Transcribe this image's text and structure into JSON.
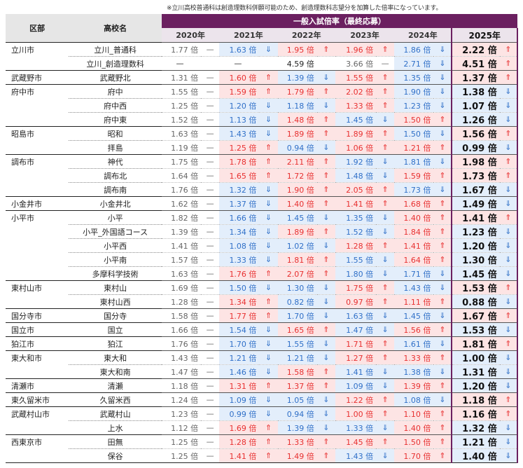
{
  "note": "※立川高校普通科は創造理数科併願可能のため、創造理数科志望分を加算した倍率になっています。",
  "header": {
    "district_label": "区部",
    "school_label": "高校名",
    "banner": "一般入試倍率（最終応募）",
    "years": [
      "2020年",
      "2021年",
      "2022年",
      "2023年",
      "2024年",
      "2025年"
    ]
  },
  "unit": "倍",
  "rows": [
    {
      "district": "立川市",
      "school": "立川_普通科",
      "vals": [
        "1.77",
        "1.63",
        "1.95",
        "1.96",
        "1.86",
        "2.22"
      ],
      "trend": [
        "flat",
        "down",
        "up",
        "up",
        "down",
        "up"
      ]
    },
    {
      "district": "",
      "school": "立川_創造理数科",
      "vals": [
        "—",
        "—",
        "4.59",
        "3.66",
        "2.71",
        "4.51"
      ],
      "trend": [
        "blank",
        "blank",
        "blank",
        "flat",
        "down",
        "up"
      ]
    },
    {
      "district": "武蔵野市",
      "school": "武蔵野北",
      "vals": [
        "1.31",
        "1.60",
        "1.39",
        "1.55",
        "1.35",
        "1.37"
      ],
      "trend": [
        "flat",
        "up",
        "down",
        "up",
        "down",
        "up"
      ]
    },
    {
      "district": "府中市",
      "school": "府中",
      "vals": [
        "1.55",
        "1.59",
        "1.79",
        "2.02",
        "1.90",
        "1.38"
      ],
      "trend": [
        "flat",
        "up",
        "up",
        "up",
        "down",
        "down"
      ]
    },
    {
      "district": "",
      "school": "府中西",
      "vals": [
        "1.25",
        "1.20",
        "1.18",
        "1.33",
        "1.23",
        "1.07"
      ],
      "trend": [
        "flat",
        "down",
        "down",
        "up",
        "down",
        "down"
      ]
    },
    {
      "district": "",
      "school": "府中東",
      "vals": [
        "1.52",
        "1.13",
        "1.48",
        "1.45",
        "1.50",
        "1.26"
      ],
      "trend": [
        "flat",
        "down",
        "up",
        "down",
        "up",
        "down"
      ]
    },
    {
      "district": "昭島市",
      "school": "昭和",
      "vals": [
        "1.63",
        "1.43",
        "1.89",
        "1.89",
        "1.50",
        "1.56"
      ],
      "trend": [
        "flat",
        "down",
        "up",
        "up",
        "down",
        "up"
      ]
    },
    {
      "district": "",
      "school": "拝島",
      "vals": [
        "1.19",
        "1.25",
        "0.94",
        "1.06",
        "1.21",
        "0.99"
      ],
      "trend": [
        "flat",
        "up",
        "down",
        "up",
        "up",
        "down"
      ]
    },
    {
      "district": "調布市",
      "school": "神代",
      "vals": [
        "1.75",
        "1.78",
        "2.11",
        "1.92",
        "1.81",
        "1.98"
      ],
      "trend": [
        "flat",
        "up",
        "up",
        "down",
        "down",
        "up"
      ]
    },
    {
      "district": "",
      "school": "調布北",
      "vals": [
        "1.64",
        "1.65",
        "1.72",
        "1.48",
        "1.59",
        "1.73"
      ],
      "trend": [
        "flat",
        "up",
        "up",
        "down",
        "up",
        "up"
      ]
    },
    {
      "district": "",
      "school": "調布南",
      "vals": [
        "1.76",
        "1.32",
        "1.90",
        "2.05",
        "1.73",
        "1.67"
      ],
      "trend": [
        "flat",
        "down",
        "up",
        "up",
        "down",
        "down"
      ]
    },
    {
      "district": "小金井市",
      "school": "小金井北",
      "vals": [
        "1.62",
        "1.37",
        "1.40",
        "1.41",
        "1.68",
        "1.49"
      ],
      "trend": [
        "flat",
        "down",
        "up",
        "up",
        "up",
        "down"
      ]
    },
    {
      "district": "小平市",
      "school": "小平",
      "vals": [
        "1.82",
        "1.66",
        "1.45",
        "1.35",
        "1.40",
        "1.41"
      ],
      "trend": [
        "flat",
        "down",
        "down",
        "down",
        "up",
        "up"
      ]
    },
    {
      "district": "",
      "school": "小平_外国語コース",
      "vals": [
        "1.39",
        "1.34",
        "1.89",
        "1.52",
        "1.84",
        "1.23"
      ],
      "trend": [
        "flat",
        "down",
        "up",
        "down",
        "up",
        "down"
      ]
    },
    {
      "district": "",
      "school": "小平西",
      "vals": [
        "1.41",
        "1.08",
        "1.02",
        "1.28",
        "1.41",
        "1.20"
      ],
      "trend": [
        "flat",
        "down",
        "down",
        "up",
        "up",
        "down"
      ]
    },
    {
      "district": "",
      "school": "小平南",
      "vals": [
        "1.57",
        "1.33",
        "1.81",
        "1.55",
        "1.64",
        "1.30"
      ],
      "trend": [
        "flat",
        "down",
        "up",
        "down",
        "up",
        "down"
      ]
    },
    {
      "district": "",
      "school": "多摩科学技術",
      "vals": [
        "1.63",
        "1.76",
        "2.07",
        "1.80",
        "1.71",
        "1.45"
      ],
      "trend": [
        "flat",
        "up",
        "up",
        "down",
        "down",
        "down"
      ]
    },
    {
      "district": "東村山市",
      "school": "東村山",
      "vals": [
        "1.69",
        "1.50",
        "1.30",
        "1.75",
        "1.43",
        "1.53"
      ],
      "trend": [
        "flat",
        "down",
        "down",
        "up",
        "down",
        "up"
      ]
    },
    {
      "district": "",
      "school": "東村山西",
      "vals": [
        "1.28",
        "1.34",
        "0.82",
        "0.97",
        "1.11",
        "0.88"
      ],
      "trend": [
        "flat",
        "up",
        "down",
        "up",
        "up",
        "down"
      ]
    },
    {
      "district": "国分寺市",
      "school": "国分寺",
      "vals": [
        "1.58",
        "1.77",
        "1.70",
        "1.63",
        "1.45",
        "1.67"
      ],
      "trend": [
        "flat",
        "up",
        "down",
        "down",
        "down",
        "up"
      ]
    },
    {
      "district": "国立市",
      "school": "国立",
      "vals": [
        "1.66",
        "1.54",
        "1.65",
        "1.47",
        "1.56",
        "1.53"
      ],
      "trend": [
        "flat",
        "down",
        "up",
        "down",
        "up",
        "down"
      ]
    },
    {
      "district": "狛江市",
      "school": "狛江",
      "vals": [
        "1.76",
        "1.70",
        "1.55",
        "1.71",
        "1.61",
        "1.81"
      ],
      "trend": [
        "flat",
        "down",
        "down",
        "up",
        "down",
        "up"
      ]
    },
    {
      "district": "東大和市",
      "school": "東大和",
      "vals": [
        "1.43",
        "1.21",
        "1.21",
        "1.27",
        "1.33",
        "1.00"
      ],
      "trend": [
        "flat",
        "down",
        "down",
        "up",
        "up",
        "down"
      ]
    },
    {
      "district": "",
      "school": "東大和南",
      "vals": [
        "1.47",
        "1.46",
        "1.58",
        "1.41",
        "1.38",
        "1.31"
      ],
      "trend": [
        "flat",
        "down",
        "up",
        "down",
        "down",
        "down"
      ]
    },
    {
      "district": "清瀬市",
      "school": "清瀬",
      "vals": [
        "1.18",
        "1.31",
        "1.37",
        "1.09",
        "1.39",
        "1.20"
      ],
      "trend": [
        "flat",
        "up",
        "up",
        "down",
        "up",
        "down"
      ]
    },
    {
      "district": "東久留米市",
      "school": "久留米西",
      "vals": [
        "1.24",
        "1.09",
        "1.05",
        "1.22",
        "1.08",
        "1.18"
      ],
      "trend": [
        "flat",
        "down",
        "down",
        "up",
        "down",
        "up"
      ]
    },
    {
      "district": "武蔵村山市",
      "school": "武蔵村山",
      "vals": [
        "1.23",
        "0.99",
        "0.94",
        "1.00",
        "1.10",
        "1.16"
      ],
      "trend": [
        "flat",
        "down",
        "down",
        "up",
        "up",
        "up"
      ]
    },
    {
      "district": "",
      "school": "上水",
      "vals": [
        "1.12",
        "1.69",
        "1.39",
        "1.33",
        "1.40",
        "1.32"
      ],
      "trend": [
        "flat",
        "up",
        "down",
        "down",
        "up",
        "down"
      ]
    },
    {
      "district": "西東京市",
      "school": "田無",
      "vals": [
        "1.25",
        "1.28",
        "1.33",
        "1.45",
        "1.50",
        "1.21"
      ],
      "trend": [
        "flat",
        "up",
        "up",
        "up",
        "up",
        "down"
      ]
    },
    {
      "district": "",
      "school": "保谷",
      "vals": [
        "1.25",
        "1.41",
        "1.49",
        "1.43",
        "1.70",
        "1.40"
      ],
      "trend": [
        "flat",
        "up",
        "up",
        "down",
        "up",
        "down"
      ]
    }
  ],
  "symbols": {
    "up": "⇑",
    "down": "⇓",
    "flat": "—",
    "blank": ""
  },
  "colors": {
    "banner": "#6b2060",
    "up": "#e83030",
    "down": "#3070c8"
  }
}
